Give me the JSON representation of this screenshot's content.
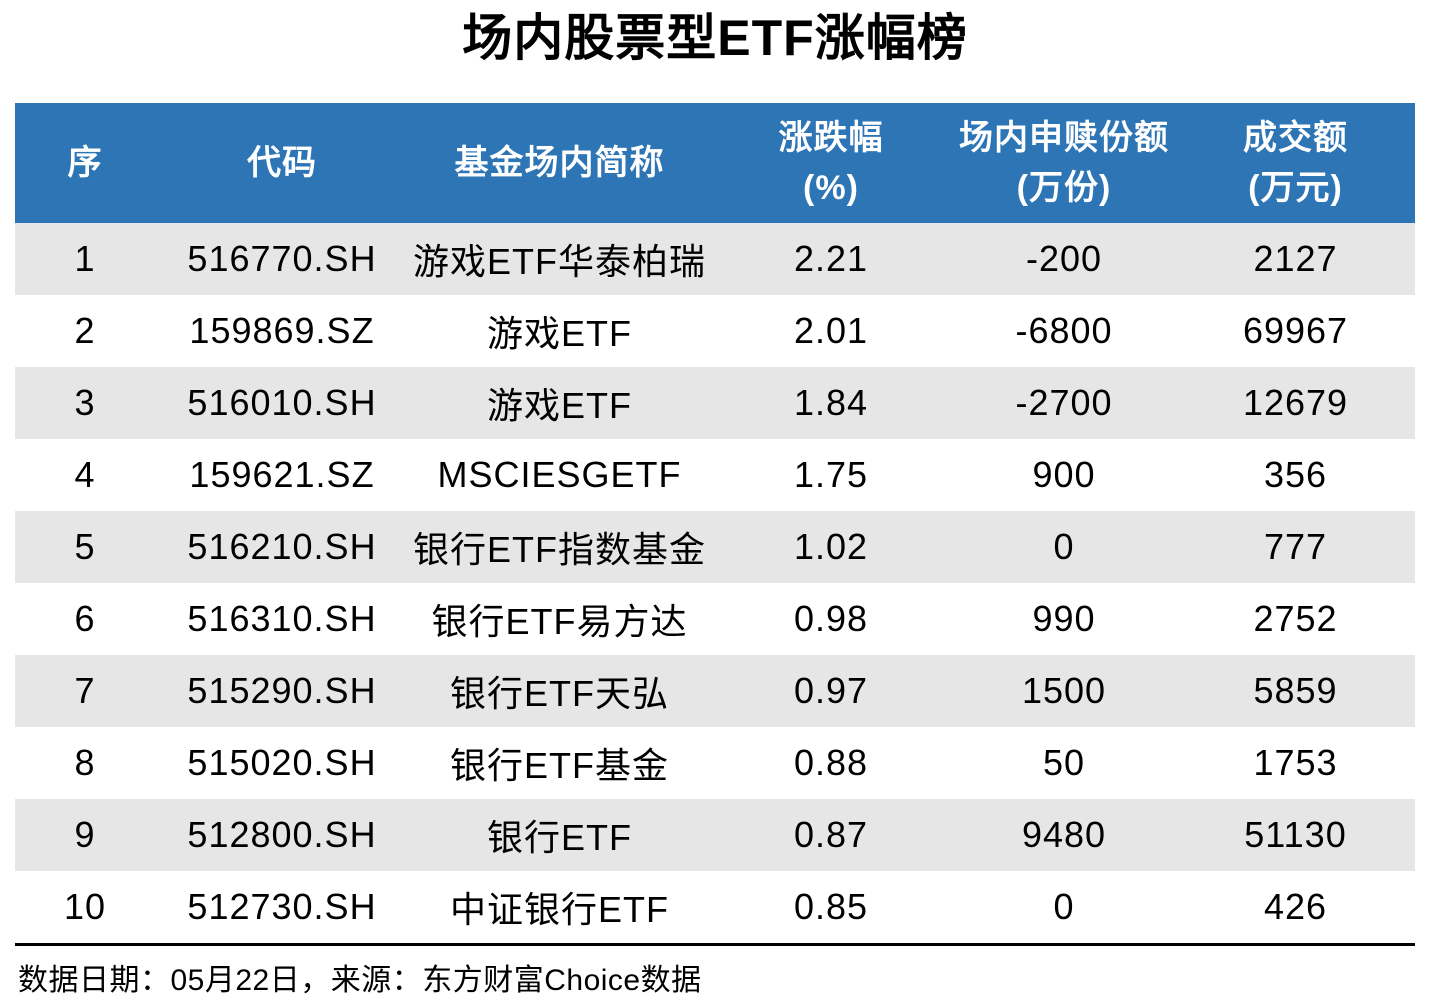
{
  "title": "场内股票型ETF涨幅榜",
  "header": {
    "columns": [
      {
        "line1": "序",
        "line2": ""
      },
      {
        "line1": "代码",
        "line2": ""
      },
      {
        "line1": "基金场内简称",
        "line2": ""
      },
      {
        "line1": "涨跌幅",
        "line2": "(%)"
      },
      {
        "line1": "场内申赎份额",
        "line2": "(万份)"
      },
      {
        "line1": "成交额",
        "line2": "(万元)"
      }
    ]
  },
  "chart_data": {
    "type": "table",
    "title": "场内股票型ETF涨幅榜",
    "columns": [
      "序",
      "代码",
      "基金场内简称",
      "涨跌幅(%)",
      "场内申赎份额(万份)",
      "成交额(万元)"
    ],
    "rows": [
      [
        "1",
        "516770.SH",
        "游戏ETF华泰柏瑞",
        "2.21",
        "-200",
        "2127"
      ],
      [
        "2",
        "159869.SZ",
        "游戏ETF",
        "2.01",
        "-6800",
        "69967"
      ],
      [
        "3",
        "516010.SH",
        "游戏ETF",
        "1.84",
        "-2700",
        "12679"
      ],
      [
        "4",
        "159621.SZ",
        "MSCIESGETF",
        "1.75",
        "900",
        "356"
      ],
      [
        "5",
        "516210.SH",
        "银行ETF指数基金",
        "1.02",
        "0",
        "777"
      ],
      [
        "6",
        "516310.SH",
        "银行ETF易方达",
        "0.98",
        "990",
        "2752"
      ],
      [
        "7",
        "515290.SH",
        "银行ETF天弘",
        "0.97",
        "1500",
        "5859"
      ],
      [
        "8",
        "515020.SH",
        "银行ETF基金",
        "0.88",
        "50",
        "1753"
      ],
      [
        "9",
        "512800.SH",
        "银行ETF",
        "0.87",
        "9480",
        "51130"
      ],
      [
        "10",
        "512730.SH",
        "中证银行ETF",
        "0.85",
        "0",
        "426"
      ]
    ]
  },
  "footer": {
    "text": "数据日期：05月22日，来源：东方财富Choice数据"
  },
  "colors": {
    "header_bg": "#2E75B6",
    "header_text": "#FFFFFF",
    "row_bg": "#FFFFFF",
    "row_alt_bg": "#E6E6E6",
    "body_text": "#000000",
    "divider": "#000000"
  }
}
